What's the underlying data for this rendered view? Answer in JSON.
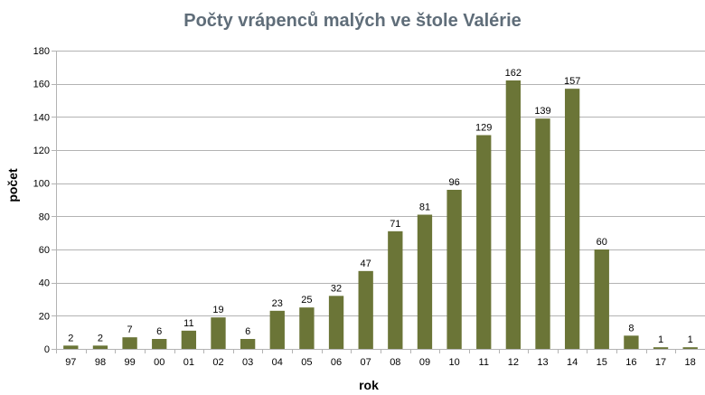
{
  "chart_data": {
    "type": "bar",
    "title": "Počty vrápenců malých ve štole Valérie",
    "xlabel": "rok",
    "ylabel": "počet",
    "categories": [
      "97",
      "98",
      "99",
      "00",
      "01",
      "02",
      "03",
      "04",
      "05",
      "06",
      "07",
      "08",
      "09",
      "10",
      "11",
      "12",
      "13",
      "14",
      "15",
      "16",
      "17",
      "18"
    ],
    "values": [
      2,
      2,
      7,
      6,
      11,
      19,
      6,
      23,
      25,
      32,
      47,
      71,
      81,
      96,
      129,
      162,
      139,
      157,
      60,
      8,
      1,
      1
    ],
    "ylim": [
      0,
      180
    ],
    "yticks": [
      0,
      20,
      40,
      60,
      80,
      100,
      120,
      140,
      160,
      180
    ],
    "grid": true,
    "legend": "none",
    "data_labels": true,
    "bar_color": "#6b7537"
  }
}
